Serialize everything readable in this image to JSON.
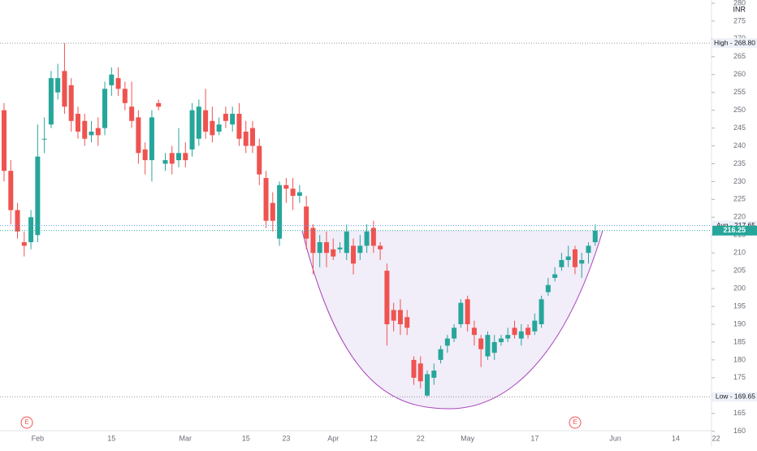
{
  "chart_data": {
    "type": "candlestick",
    "currency": "INR",
    "categories": [
      null,
      null,
      null,
      null,
      null,
      "Feb",
      null,
      null,
      null,
      null,
      null,
      null,
      null,
      null,
      null,
      null,
      "15",
      null,
      null,
      null,
      null,
      null,
      null,
      null,
      null,
      null,
      null,
      "Mar",
      null,
      null,
      null,
      null,
      null,
      null,
      null,
      null,
      "15",
      null,
      null,
      null,
      null,
      null,
      "23",
      null,
      null,
      null,
      null,
      null,
      null,
      "Apr",
      null,
      null,
      null,
      null,
      null,
      "12",
      null,
      null,
      null,
      null,
      null,
      null,
      "22",
      null,
      null,
      null,
      null,
      null,
      null,
      "May",
      null,
      null,
      null,
      null,
      null,
      null,
      null,
      null,
      null,
      "17",
      null,
      null,
      null,
      null,
      null,
      null,
      null,
      null,
      null,
      null,
      null,
      "Jun",
      null,
      null,
      null,
      null,
      null,
      null,
      null,
      null,
      "14",
      null,
      null,
      null,
      null,
      null,
      "22"
    ],
    "open": [
      250,
      233,
      222,
      213,
      213,
      215,
      242,
      246,
      255,
      261,
      257,
      249,
      247,
      243,
      245,
      245,
      257,
      259,
      256,
      251,
      248,
      239,
      236,
      252,
      235,
      238,
      236,
      238,
      239,
      242,
      250,
      247,
      244,
      249,
      246,
      249,
      244,
      245,
      240,
      231,
      224,
      214,
      229,
      228,
      226,
      223,
      217,
      210,
      213,
      211,
      211,
      210,
      212,
      210,
      212,
      217,
      212,
      205,
      194,
      194,
      192,
      180,
      179,
      170,
      175,
      180,
      184,
      186,
      190,
      197,
      189,
      186,
      181,
      182,
      185,
      186,
      189,
      186,
      189,
      188,
      190,
      199,
      203,
      206,
      208,
      211,
      207,
      210,
      213,
      null,
      null,
      null,
      null,
      null,
      null,
      null,
      null,
      null,
      null,
      null,
      null,
      null,
      null,
      null,
      null,
      null,
      null
    ],
    "high": [
      252,
      236,
      224,
      216,
      222,
      246,
      248,
      261,
      263,
      268.8,
      259,
      251,
      249,
      247,
      248,
      258,
      262,
      262,
      258,
      258,
      250,
      241,
      250,
      253,
      238,
      240,
      245,
      241,
      252,
      253,
      256,
      251,
      248,
      251,
      251,
      252,
      247,
      247,
      242,
      233,
      227,
      230,
      231,
      231,
      229,
      226,
      218,
      215,
      216,
      214,
      213,
      218,
      214,
      215,
      218,
      219,
      213,
      207,
      196,
      197,
      194,
      181,
      181,
      177,
      179,
      184,
      187,
      190,
      197,
      198,
      191,
      187,
      188,
      187,
      187,
      189,
      191,
      190,
      190,
      193,
      198,
      203,
      206,
      210,
      212,
      212,
      210,
      213,
      218,
      null,
      null,
      null,
      null,
      null,
      null,
      null,
      null,
      null,
      null,
      null,
      null,
      null,
      null,
      null,
      null,
      null,
      null
    ],
    "low": [
      230,
      218,
      214,
      209,
      211,
      213,
      238,
      245,
      253,
      249,
      244,
      242,
      240,
      241,
      240,
      243,
      254,
      254,
      250,
      245,
      235,
      232,
      230,
      250,
      233,
      232,
      234,
      234,
      237,
      240,
      242,
      241,
      243,
      245,
      244,
      240,
      238,
      238,
      229,
      217,
      216,
      212,
      224,
      222,
      224,
      211,
      204,
      206,
      206,
      208,
      210,
      208,
      204,
      208,
      210,
      210,
      208,
      184,
      188,
      187,
      187,
      173,
      172,
      169.65,
      173,
      179,
      182,
      185,
      189,
      188,
      184,
      178,
      180,
      180,
      184,
      185,
      186,
      184,
      186,
      187,
      189,
      198,
      202,
      205,
      206,
      204,
      203,
      207,
      212,
      null,
      null,
      null,
      null,
      null,
      null,
      null,
      null,
      null,
      null,
      null,
      null,
      null,
      null,
      null,
      null,
      null,
      null
    ],
    "close": [
      233,
      222,
      216,
      212,
      220,
      237,
      242,
      259,
      259,
      251,
      247,
      244,
      242,
      244,
      243,
      256,
      260,
      256,
      252,
      247,
      238,
      236,
      248,
      251,
      236,
      235,
      238,
      236,
      250,
      251,
      244,
      243,
      246,
      247,
      249,
      242,
      240,
      240,
      232,
      219,
      219,
      229,
      228,
      226,
      227,
      214,
      210,
      213,
      210,
      209,
      211.5,
      216,
      207,
      212,
      216,
      212,
      211,
      190,
      191,
      190,
      189,
      175,
      174,
      176,
      177,
      183,
      186,
      189,
      196,
      190,
      187,
      183,
      187,
      185,
      186,
      187,
      187,
      188,
      187,
      191,
      197,
      201,
      204,
      208,
      209,
      206,
      208,
      212,
      216.25,
      null,
      null,
      null,
      null,
      null,
      null,
      null,
      null,
      null,
      null,
      null,
      null,
      null,
      null,
      null,
      null,
      null,
      null
    ],
    "up_color": "#26a69a",
    "down_color": "#ef5350",
    "ylim": [
      155.6,
      280.9
    ],
    "yticks": [
      160,
      165,
      170,
      175,
      180,
      185,
      190,
      195,
      200,
      205,
      210,
      215,
      220,
      225,
      230,
      235,
      240,
      245,
      250,
      255,
      260,
      265,
      270,
      275,
      280
    ],
    "price_lines": [
      {
        "label": "High - 268.80",
        "value": 268.8
      },
      {
        "label": "Avg - 217.65",
        "value": 217.65
      },
      {
        "label": "Low - 169.65",
        "value": 169.65
      }
    ],
    "last_price": 216.25,
    "earnings": [
      "E",
      "E"
    ]
  }
}
